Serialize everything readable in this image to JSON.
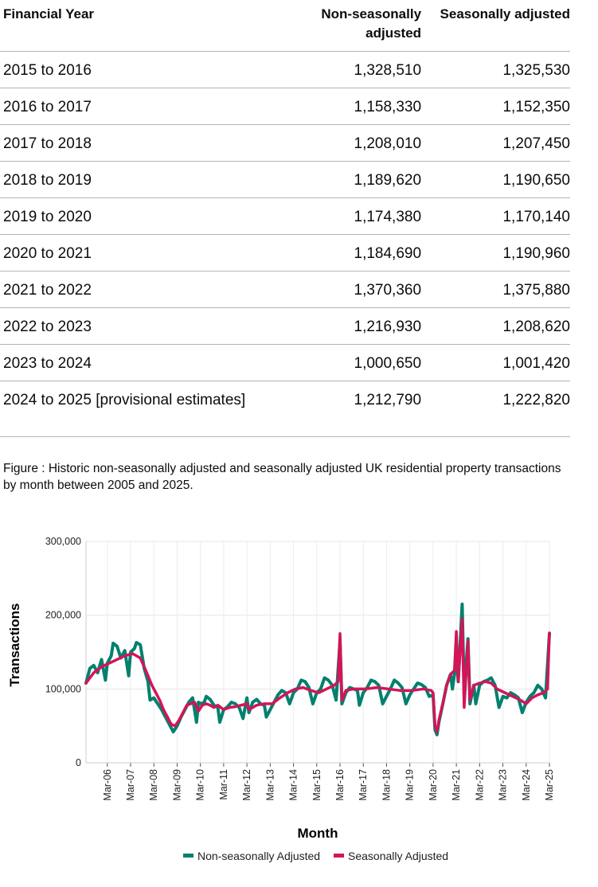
{
  "table": {
    "headers": [
      "Financial Year",
      "Non-seasonally adjusted",
      "Seasonally adjusted"
    ],
    "rows": [
      {
        "year": "2015 to 2016",
        "nsa": "1,328,510",
        "sa": "1,325,530"
      },
      {
        "year": "2016 to 2017",
        "nsa": "1,158,330",
        "sa": "1,152,350"
      },
      {
        "year": "2017 to 2018",
        "nsa": "1,208,010",
        "sa": "1,207,450"
      },
      {
        "year": "2018 to 2019",
        "nsa": "1,189,620",
        "sa": "1,190,650"
      },
      {
        "year": "2019 to 2020",
        "nsa": "1,174,380",
        "sa": "1,170,140"
      },
      {
        "year": "2020 to 2021",
        "nsa": "1,184,690",
        "sa": "1,190,960"
      },
      {
        "year": "2021 to 2022",
        "nsa": "1,370,360",
        "sa": "1,375,880"
      },
      {
        "year": "2022 to 2023",
        "nsa": "1,216,930",
        "sa": "1,208,620"
      },
      {
        "year": "2023 to 2024",
        "nsa": "1,000,650",
        "sa": "1,001,420"
      },
      {
        "year": "2024 to 2025 [provisional estimates]",
        "nsa": "1,212,790",
        "sa": "1,222,820"
      }
    ]
  },
  "caption": "Figure : Historic non-seasonally adjusted and seasonally adjusted UK residential property transactions by month between 2005 and 2025.",
  "chart_data": {
    "type": "line",
    "title": "",
    "xlabel": "Month",
    "ylabel": "Transactions",
    "ylim": [
      0,
      300000
    ],
    "yticks": [
      0,
      100000,
      200000,
      300000
    ],
    "ytick_labels": [
      "0",
      "100,000",
      "200,000",
      "300,000"
    ],
    "xticks": [
      "Mar-06",
      "Mar-07",
      "Mar-08",
      "Mar-09",
      "Mar-10",
      "Mar-11",
      "Mar-12",
      "Mar-13",
      "Mar-14",
      "Mar-15",
      "Mar-16",
      "Mar-17",
      "Mar-18",
      "Mar-19",
      "Mar-20",
      "Mar-21",
      "Mar-22",
      "Mar-23",
      "Mar-24",
      "Mar-25"
    ],
    "x_range": [
      "2005-04",
      "2025-03"
    ],
    "grid": true,
    "legend": "bottom",
    "series": [
      {
        "name": "Non-seasonally Adjusted",
        "color": "#00806e",
        "anchors": [
          [
            "2005-04",
            108000
          ],
          [
            "2005-06",
            128000
          ],
          [
            "2005-08",
            132000
          ],
          [
            "2005-10",
            122000
          ],
          [
            "2005-12",
            140000
          ],
          [
            "2006-02",
            112000
          ],
          [
            "2006-03",
            135000
          ],
          [
            "2006-05",
            145000
          ],
          [
            "2006-06",
            162000
          ],
          [
            "2006-08",
            158000
          ],
          [
            "2006-10",
            142000
          ],
          [
            "2006-12",
            152000
          ],
          [
            "2007-02",
            118000
          ],
          [
            "2007-03",
            150000
          ],
          [
            "2007-05",
            155000
          ],
          [
            "2007-06",
            163000
          ],
          [
            "2007-08",
            160000
          ],
          [
            "2007-10",
            128000
          ],
          [
            "2007-12",
            110000
          ],
          [
            "2008-01",
            85000
          ],
          [
            "2008-03",
            88000
          ],
          [
            "2008-05",
            80000
          ],
          [
            "2008-07",
            72000
          ],
          [
            "2008-09",
            62000
          ],
          [
            "2008-11",
            52000
          ],
          [
            "2009-01",
            42000
          ],
          [
            "2009-03",
            50000
          ],
          [
            "2009-05",
            62000
          ],
          [
            "2009-07",
            72000
          ],
          [
            "2009-09",
            82000
          ],
          [
            "2009-11",
            88000
          ],
          [
            "2010-01",
            55000
          ],
          [
            "2010-02",
            82000
          ],
          [
            "2010-03",
            80000
          ],
          [
            "2010-05",
            82000
          ],
          [
            "2010-06",
            90000
          ],
          [
            "2010-08",
            86000
          ],
          [
            "2010-10",
            78000
          ],
          [
            "2010-12",
            75000
          ],
          [
            "2011-01",
            55000
          ],
          [
            "2011-03",
            72000
          ],
          [
            "2011-05",
            76000
          ],
          [
            "2011-07",
            82000
          ],
          [
            "2011-09",
            80000
          ],
          [
            "2011-11",
            75000
          ],
          [
            "2012-01",
            60000
          ],
          [
            "2012-03",
            88000
          ],
          [
            "2012-04",
            68000
          ],
          [
            "2012-06",
            82000
          ],
          [
            "2012-08",
            86000
          ],
          [
            "2012-10",
            80000
          ],
          [
            "2012-12",
            78000
          ],
          [
            "2013-01",
            62000
          ],
          [
            "2013-03",
            72000
          ],
          [
            "2013-05",
            82000
          ],
          [
            "2013-07",
            92000
          ],
          [
            "2013-09",
            98000
          ],
          [
            "2013-11",
            95000
          ],
          [
            "2014-01",
            80000
          ],
          [
            "2014-03",
            95000
          ],
          [
            "2014-05",
            100000
          ],
          [
            "2014-07",
            112000
          ],
          [
            "2014-09",
            110000
          ],
          [
            "2014-11",
            102000
          ],
          [
            "2015-01",
            80000
          ],
          [
            "2015-03",
            95000
          ],
          [
            "2015-05",
            100000
          ],
          [
            "2015-07",
            115000
          ],
          [
            "2015-09",
            112000
          ],
          [
            "2015-11",
            105000
          ],
          [
            "2016-01",
            85000
          ],
          [
            "2016-03",
            165000
          ],
          [
            "2016-04",
            80000
          ],
          [
            "2016-06",
            95000
          ],
          [
            "2016-08",
            102000
          ],
          [
            "2016-10",
            100000
          ],
          [
            "2016-12",
            98000
          ],
          [
            "2017-01",
            78000
          ],
          [
            "2017-03",
            95000
          ],
          [
            "2017-05",
            102000
          ],
          [
            "2017-07",
            112000
          ],
          [
            "2017-09",
            110000
          ],
          [
            "2017-11",
            105000
          ],
          [
            "2018-01",
            80000
          ],
          [
            "2018-03",
            90000
          ],
          [
            "2018-05",
            100000
          ],
          [
            "2018-07",
            112000
          ],
          [
            "2018-09",
            108000
          ],
          [
            "2018-11",
            102000
          ],
          [
            "2019-01",
            80000
          ],
          [
            "2019-03",
            92000
          ],
          [
            "2019-05",
            100000
          ],
          [
            "2019-07",
            108000
          ],
          [
            "2019-09",
            106000
          ],
          [
            "2019-11",
            102000
          ],
          [
            "2020-01",
            90000
          ],
          [
            "2020-03",
            92000
          ],
          [
            "2020-04",
            45000
          ],
          [
            "2020-05",
            38000
          ],
          [
            "2020-06",
            55000
          ],
          [
            "2020-08",
            80000
          ],
          [
            "2020-10",
            105000
          ],
          [
            "2020-12",
            120000
          ],
          [
            "2021-01",
            100000
          ],
          [
            "2021-03",
            140000
          ],
          [
            "2021-04",
            110000
          ],
          [
            "2021-06",
            215000
          ],
          [
            "2021-07",
            95000
          ],
          [
            "2021-09",
            168000
          ],
          [
            "2021-10",
            80000
          ],
          [
            "2021-12",
            105000
          ],
          [
            "2022-01",
            80000
          ],
          [
            "2022-03",
            105000
          ],
          [
            "2022-05",
            110000
          ],
          [
            "2022-07",
            112000
          ],
          [
            "2022-09",
            115000
          ],
          [
            "2022-11",
            105000
          ],
          [
            "2023-01",
            75000
          ],
          [
            "2023-03",
            90000
          ],
          [
            "2023-05",
            88000
          ],
          [
            "2023-07",
            95000
          ],
          [
            "2023-09",
            92000
          ],
          [
            "2023-11",
            88000
          ],
          [
            "2024-01",
            68000
          ],
          [
            "2024-03",
            82000
          ],
          [
            "2024-05",
            90000
          ],
          [
            "2024-07",
            95000
          ],
          [
            "2024-09",
            105000
          ],
          [
            "2024-11",
            100000
          ],
          [
            "2025-01",
            88000
          ],
          [
            "2025-03",
            175000
          ]
        ]
      },
      {
        "name": "Seasonally Adjusted",
        "color": "#d31458",
        "anchors": [
          [
            "2005-04",
            108000
          ],
          [
            "2005-08",
            122000
          ],
          [
            "2005-12",
            130000
          ],
          [
            "2006-04",
            135000
          ],
          [
            "2006-08",
            140000
          ],
          [
            "2006-12",
            145000
          ],
          [
            "2007-04",
            148000
          ],
          [
            "2007-08",
            142000
          ],
          [
            "2007-10",
            130000
          ],
          [
            "2007-12",
            118000
          ],
          [
            "2008-02",
            105000
          ],
          [
            "2008-04",
            95000
          ],
          [
            "2008-06",
            85000
          ],
          [
            "2008-08",
            72000
          ],
          [
            "2008-10",
            62000
          ],
          [
            "2008-12",
            52000
          ],
          [
            "2009-02",
            50000
          ],
          [
            "2009-04",
            58000
          ],
          [
            "2009-06",
            68000
          ],
          [
            "2009-08",
            78000
          ],
          [
            "2009-10",
            80000
          ],
          [
            "2009-12",
            82000
          ],
          [
            "2010-02",
            70000
          ],
          [
            "2010-04",
            78000
          ],
          [
            "2010-06",
            80000
          ],
          [
            "2010-08",
            78000
          ],
          [
            "2010-10",
            75000
          ],
          [
            "2010-12",
            78000
          ],
          [
            "2011-03",
            72000
          ],
          [
            "2011-06",
            75000
          ],
          [
            "2011-09",
            76000
          ],
          [
            "2011-12",
            78000
          ],
          [
            "2012-03",
            80000
          ],
          [
            "2012-04",
            72000
          ],
          [
            "2012-08",
            78000
          ],
          [
            "2012-12",
            80000
          ],
          [
            "2013-04",
            80000
          ],
          [
            "2013-08",
            88000
          ],
          [
            "2013-12",
            95000
          ],
          [
            "2014-04",
            100000
          ],
          [
            "2014-08",
            102000
          ],
          [
            "2014-12",
            98000
          ],
          [
            "2015-04",
            95000
          ],
          [
            "2015-08",
            100000
          ],
          [
            "2015-12",
            105000
          ],
          [
            "2016-02",
            110000
          ],
          [
            "2016-03",
            175000
          ],
          [
            "2016-04",
            85000
          ],
          [
            "2016-06",
            98000
          ],
          [
            "2016-10",
            100000
          ],
          [
            "2017-04",
            100000
          ],
          [
            "2017-10",
            102000
          ],
          [
            "2018-04",
            100000
          ],
          [
            "2018-10",
            98000
          ],
          [
            "2019-04",
            98000
          ],
          [
            "2019-10",
            100000
          ],
          [
            "2020-02",
            98000
          ],
          [
            "2020-03",
            95000
          ],
          [
            "2020-04",
            50000
          ],
          [
            "2020-05",
            42000
          ],
          [
            "2020-06",
            58000
          ],
          [
            "2020-08",
            80000
          ],
          [
            "2020-10",
            105000
          ],
          [
            "2020-12",
            120000
          ],
          [
            "2021-02",
            125000
          ],
          [
            "2021-03",
            178000
          ],
          [
            "2021-04",
            110000
          ],
          [
            "2021-06",
            195000
          ],
          [
            "2021-07",
            75000
          ],
          [
            "2021-09",
            165000
          ],
          [
            "2021-10",
            85000
          ],
          [
            "2021-12",
            105000
          ],
          [
            "2022-03",
            108000
          ],
          [
            "2022-06",
            110000
          ],
          [
            "2022-09",
            108000
          ],
          [
            "2022-12",
            100000
          ],
          [
            "2023-04",
            95000
          ],
          [
            "2023-08",
            90000
          ],
          [
            "2023-12",
            85000
          ],
          [
            "2024-03",
            80000
          ],
          [
            "2024-06",
            88000
          ],
          [
            "2024-09",
            92000
          ],
          [
            "2024-12",
            95000
          ],
          [
            "2025-02",
            100000
          ],
          [
            "2025-03",
            176000
          ]
        ]
      }
    ]
  }
}
